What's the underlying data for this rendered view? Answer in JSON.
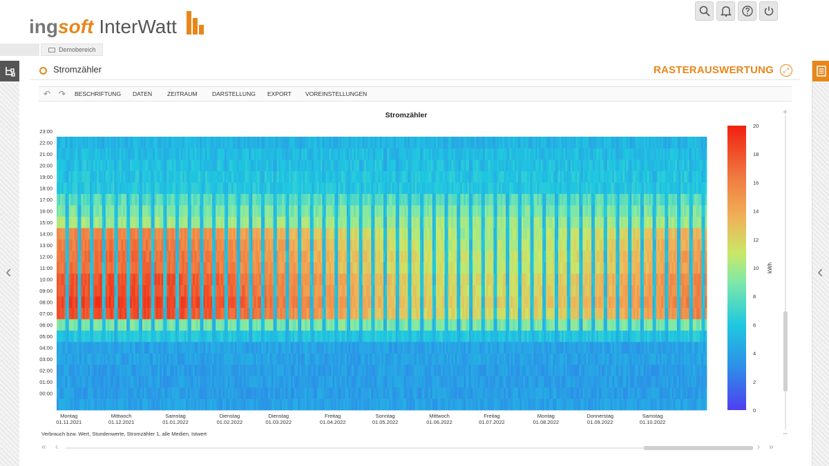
{
  "app": {
    "logo_part1": "ing",
    "logo_part2": "soft",
    "logo_part3": "InterWatt"
  },
  "header_buttons": [
    {
      "name": "search-button",
      "icon": "search-icon"
    },
    {
      "name": "notifications-button",
      "icon": "bell-icon"
    },
    {
      "name": "help-button",
      "icon": "help-icon"
    },
    {
      "name": "logout-button",
      "icon": "power-icon"
    }
  ],
  "breadcrumb": {
    "label": "Demobereich"
  },
  "panel": {
    "title": "Stromzähler",
    "view_title": "RASTERAUSWERTUNG"
  },
  "toolbar": {
    "items": [
      "BESCHRIFTUNG",
      "DATEN",
      "ZEITRAUM",
      "DARSTELLUNG",
      "EXPORT",
      "VOREINSTELLUNGEN"
    ]
  },
  "footer_note": "Verbrauch bzw. Wert, Stundenwerte, Stromzähler 1, alle Medien, Istwert",
  "colors": {
    "accent": "#e8861a"
  },
  "chart_data": {
    "type": "heatmap",
    "title": "Stromzähler",
    "y_ticks": [
      "23:00",
      "22:00",
      "21:00",
      "20:00",
      "19:00",
      "18:00",
      "17:00",
      "16:00",
      "15:00",
      "14:00",
      "13:00",
      "12:00",
      "11:00",
      "10:00",
      "09:00",
      "08:00",
      "07:00",
      "06:00",
      "05:00",
      "04:00",
      "03:00",
      "02:00",
      "01:00",
      "00:00"
    ],
    "x_ticks": [
      {
        "day": "Montag",
        "date": "01.11.2021"
      },
      {
        "day": "Mittwoch",
        "date": "01.12.2021"
      },
      {
        "day": "Samstag",
        "date": "01.01.2022"
      },
      {
        "day": "Dienstag",
        "date": "01.02.2022"
      },
      {
        "day": "Dienstag",
        "date": "01.03.2022"
      },
      {
        "day": "Freitag",
        "date": "01.04.2022"
      },
      {
        "day": "Sonntag",
        "date": "01.05.2022"
      },
      {
        "day": "Mittwoch",
        "date": "01.06.2022"
      },
      {
        "day": "Freitag",
        "date": "01.07.2022"
      },
      {
        "day": "Montag",
        "date": "01.08.2022"
      },
      {
        "day": "Donnerstag",
        "date": "01.09.2022"
      },
      {
        "day": "Samstag",
        "date": "01.10.2022"
      }
    ],
    "x_range": [
      "2021-10-25",
      "2022-10-31"
    ],
    "colorbar": {
      "label": "kWh",
      "min": 0,
      "max": 20,
      "ticks": [
        "20",
        "18",
        "16",
        "14",
        "12",
        "10",
        "8",
        "6",
        "4",
        "2",
        "0"
      ]
    },
    "hourly_profile_kwh": {
      "workday": [
        4,
        3.8,
        3.8,
        3.8,
        4,
        4,
        6,
        9,
        15,
        15.5,
        15,
        15,
        14,
        14,
        13.5,
        13,
        10,
        9,
        8,
        6,
        6,
        5.8,
        5.5,
        5
      ],
      "weekend": [
        4,
        3.8,
        3.8,
        3.8,
        4,
        4,
        5,
        5,
        5.5,
        5.5,
        5.5,
        5.5,
        5.5,
        5.5,
        5.5,
        5.5,
        5.5,
        5.5,
        5.5,
        5.5,
        5.2,
        5,
        5,
        4.8
      ]
    },
    "winter_peak_kwh": 18
  }
}
